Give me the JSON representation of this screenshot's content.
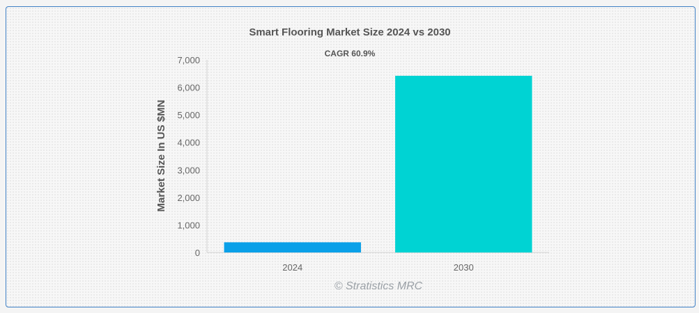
{
  "chart_data": {
    "type": "bar",
    "title": "Smart Flooring Market Size 2024 vs 2030",
    "subtitle": "CAGR 60.9%",
    "xlabel": "",
    "ylabel": "Market Size In US $MN",
    "categories": [
      "2024",
      "2030"
    ],
    "values": [
      370,
      6420
    ],
    "colors": [
      "#0aa0e8",
      "#00d3d3"
    ],
    "ylim": [
      0,
      7000
    ],
    "yticks": [
      0,
      1000,
      2000,
      3000,
      4000,
      5000,
      6000,
      7000
    ],
    "ytick_labels": [
      "0",
      "1,000",
      "2,000",
      "3,000",
      "4,000",
      "5,000",
      "6,000",
      "7,000"
    ],
    "grid": false,
    "legend": "none"
  },
  "watermark": "© Stratistics MRC"
}
